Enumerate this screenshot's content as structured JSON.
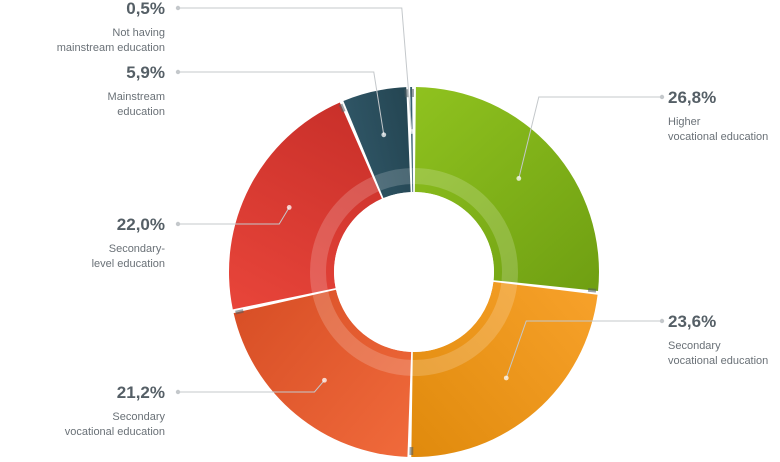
{
  "chart_data": {
    "type": "pie",
    "variant": "donut",
    "slices": [
      {
        "label": [
          "Higher",
          "vocational education"
        ],
        "value": 26.8,
        "display": "26,8%",
        "color": "#8fc21f",
        "color_dark": "#6f9f12"
      },
      {
        "label": [
          "Secondary",
          "vocational education"
        ],
        "value": 23.6,
        "display": "23,6%",
        "color": "#f7a12a",
        "color_dark": "#e08a0c"
      },
      {
        "label": [
          "Secondary",
          "vocational education"
        ],
        "value": 21.2,
        "display": "21,2%",
        "color": "#f06a3b",
        "color_dark": "#d84f26"
      },
      {
        "label": [
          "Secondary-",
          "level education"
        ],
        "value": 22.0,
        "display": "22,0%",
        "color": "#e8453a",
        "color_dark": "#c9302a"
      },
      {
        "label": [
          "Mainstream",
          "education"
        ],
        "value": 5.9,
        "display": "5,9%",
        "color": "#2f5565",
        "color_dark": "#244552"
      },
      {
        "label": [
          "Not having",
          "mainstream education"
        ],
        "value": 0.5,
        "display": "0,5%",
        "color": "#3d6b80",
        "color_dark": "#2f5565"
      }
    ],
    "legend": "none",
    "labels_placement": "outside-with-leaders"
  }
}
